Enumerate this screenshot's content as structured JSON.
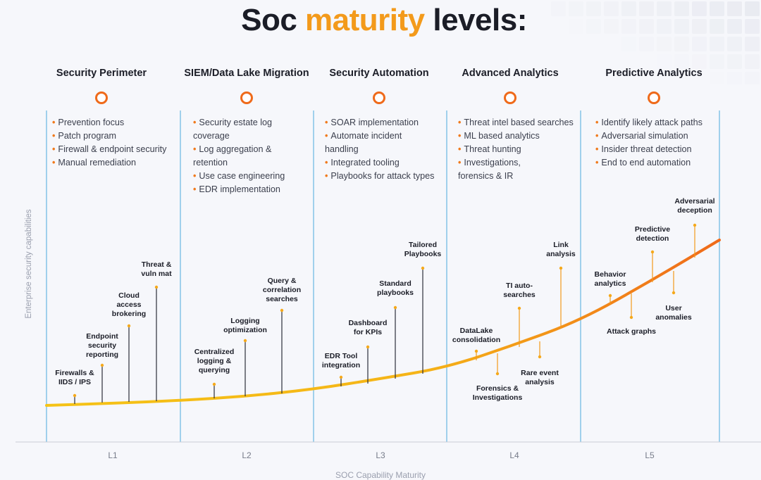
{
  "title": {
    "part1": "Soc ",
    "accent": "maturity",
    "part2": " levels:"
  },
  "stages": [
    {
      "name": "Security Perimeter",
      "items": [
        "Prevention focus",
        "Patch program",
        "Firewall & endpoint security",
        "Manual remediation"
      ]
    },
    {
      "name": "SIEM/Data Lake Migration",
      "items": [
        "Security estate log",
        "coverage",
        "Log aggregation &",
        "retention",
        "Use case engineering",
        "EDR implementation"
      ]
    },
    {
      "name": "Security Automation",
      "items": [
        "SOAR implementation",
        "Automate incident",
        "handling",
        "Integrated tooling",
        "Playbooks for attack types"
      ]
    },
    {
      "name": "Advanced Analytics",
      "items": [
        "Threat intel based searches",
        "ML based analytics",
        "Threat hunting",
        "Investigations,",
        "forensics & IR"
      ]
    },
    {
      "name": "Predictive Analytics",
      "items": [
        "Identify likely attack paths",
        "Adversarial simulation",
        "Insider threat detection",
        "End to end automation"
      ]
    }
  ],
  "bullet_flags": [
    [
      true,
      true,
      true,
      true
    ],
    [
      true,
      false,
      true,
      false,
      true,
      true
    ],
    [
      true,
      true,
      false,
      true,
      true
    ],
    [
      true,
      true,
      true,
      true,
      false
    ],
    [
      true,
      true,
      true,
      true
    ]
  ],
  "levels": [
    "L1",
    "L2",
    "L3",
    "L4",
    "L5"
  ],
  "y_axis_label": "Enterprise security capabilities",
  "x_axis_label": "SOC Capability Maturity",
  "capabilities": [
    {
      "label": "Firewalls &\nIIDS / IPS",
      "up": true
    },
    {
      "label": "Endpoint\nsecurity\nreporting",
      "up": true
    },
    {
      "label": "Cloud\naccess\nbrokering",
      "up": true
    },
    {
      "label": "Threat &\nvuln mat",
      "up": true
    },
    {
      "label": "Centralized\nlogging &\nquerying",
      "up": true
    },
    {
      "label": "Logging\noptimization",
      "up": true
    },
    {
      "label": "Query &\ncorrelation\nsearches",
      "up": true
    },
    {
      "label": "EDR Tool\nintegration",
      "up": true
    },
    {
      "label": "Dashboard\nfor KPIs",
      "up": true
    },
    {
      "label": "Standard\nplaybooks",
      "up": true
    },
    {
      "label": "Tailored\nPlaybooks",
      "up": true
    },
    {
      "label": "DataLake\nconsolidation",
      "up": true
    },
    {
      "label": "Forensics &\nInvestigations",
      "up": false
    },
    {
      "label": "TI auto-\nsearches",
      "up": true
    },
    {
      "label": "Rare event\nanalysis",
      "up": false
    },
    {
      "label": "Link\nanalysis",
      "up": true
    },
    {
      "label": "Behavior\nanalytics",
      "up": true
    },
    {
      "label": "Attack graphs",
      "up": false
    },
    {
      "label": "Predictive\ndetection",
      "up": true
    },
    {
      "label": "User\nanomalies",
      "up": false
    },
    {
      "label": "Adversarial\ndeception",
      "up": true
    }
  ],
  "colors": {
    "accent": "#f39a1b",
    "orange": "#ef6a1a",
    "yellow": "#f5c316",
    "divider": "#4aa8dc",
    "title": "#1b1d27"
  }
}
